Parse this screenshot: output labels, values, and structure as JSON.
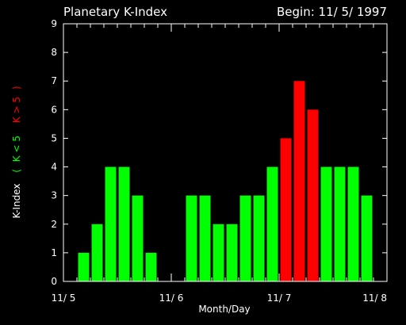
{
  "chart_data": {
    "type": "bar",
    "title": "Planetary K-Index",
    "subtitle": "Begin: 11/ 5/ 1997",
    "xlabel": "Month/Day",
    "ylabel": {
      "prefix": "K-Index",
      "open": "(",
      "green_part": "K < 5",
      "red_part": "K > 5",
      "close": ")"
    },
    "ylim": [
      0,
      9
    ],
    "yticks": [
      "0",
      "1",
      "2",
      "3",
      "4",
      "5",
      "6",
      "7",
      "8",
      "9"
    ],
    "xticks": [
      "11/ 5",
      "11/ 6",
      "11/ 7",
      "11/ 8"
    ],
    "bars_per_day": 8,
    "values": [
      1,
      2,
      4,
      4,
      3,
      1,
      0,
      0,
      3,
      3,
      2,
      2,
      3,
      3,
      4,
      5,
      7,
      6,
      4,
      4,
      4,
      3
    ],
    "threshold": 5,
    "colors": {
      "low": "#00ff00",
      "high": "#ff0000",
      "axis": "#ffffff",
      "background": "#000000"
    }
  }
}
